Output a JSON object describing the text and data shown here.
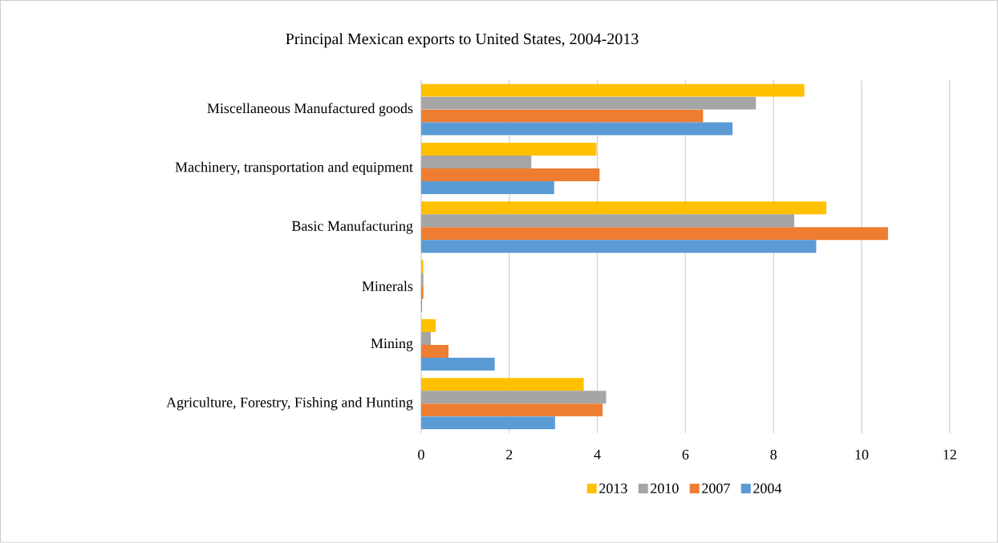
{
  "chart_data": {
    "type": "bar",
    "orientation": "horizontal",
    "title": "Principal Mexican exports to United States, 2004-2013",
    "categories": [
      "Miscellaneous Manufactured goods",
      "Machinery, transportation and equipment",
      "Basic Manufacturing",
      "Minerals",
      "Mining",
      "Agriculture, Forestry, Fishing and Hunting"
    ],
    "series": [
      {
        "name": "2013",
        "color": "#ffc000",
        "values": [
          8.7,
          3.98,
          9.2,
          0.05,
          0.33,
          3.69
        ]
      },
      {
        "name": "2010",
        "color": "#a5a5a5",
        "values": [
          7.6,
          2.5,
          8.47,
          0.05,
          0.22,
          4.2
        ]
      },
      {
        "name": "2007",
        "color": "#ed7d31",
        "values": [
          6.4,
          4.05,
          10.6,
          0.05,
          0.62,
          4.12
        ]
      },
      {
        "name": "2004",
        "color": "#5b9bd5",
        "values": [
          7.07,
          3.02,
          8.97,
          0.02,
          1.67,
          3.04
        ]
      }
    ],
    "xlim": [
      0,
      12
    ],
    "xticks": [
      0,
      2,
      4,
      6,
      8,
      10,
      12
    ],
    "grid": "x",
    "legend": "bottom"
  }
}
